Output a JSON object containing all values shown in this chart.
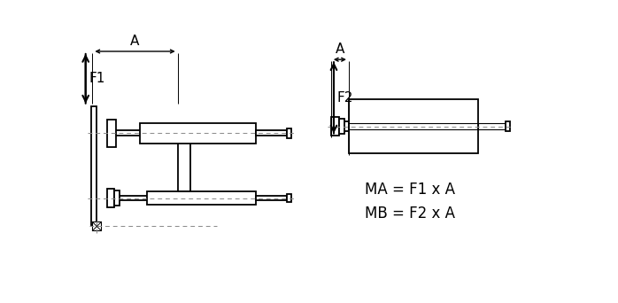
{
  "bg_color": "#ffffff",
  "line_color": "#000000",
  "dash_color": "#888888",
  "text_color": "#000000",
  "formula1": "MA = F1 x A",
  "formula2": "MB = F2 x A",
  "label_A": "A",
  "label_F1": "F1",
  "label_F2": "F2"
}
